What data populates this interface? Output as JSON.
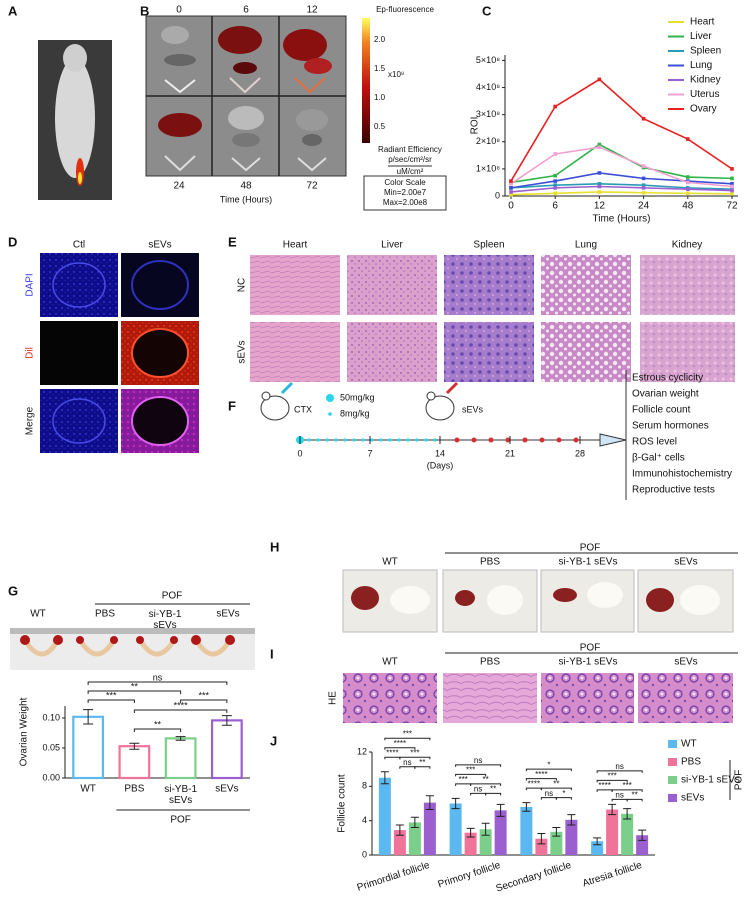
{
  "panel_labels": [
    "A",
    "B",
    "C",
    "D",
    "E",
    "F",
    "G",
    "H",
    "I",
    "J"
  ],
  "panel_b": {
    "times": [
      "0",
      "6",
      "12",
      "24",
      "48",
      "72"
    ],
    "x_label": "Time (Hours)",
    "colorbar_title": "Ep-fluorescence",
    "colorbar_ticks": [
      "2.0",
      "1.5",
      "1.0",
      "0.5"
    ],
    "colorbar_exponent": "x10⁸",
    "units": [
      "Radiant Efficiency",
      "p/sec/cm²/sr",
      "uM/cm²"
    ],
    "color_scale": [
      "Color Scale",
      "Min=2.00e7",
      "Max=2.00e8"
    ]
  },
  "panel_d": {
    "columns": [
      "Ctl",
      "sEVs"
    ],
    "rows": [
      "DAPI",
      "Dil",
      "Merge"
    ]
  },
  "panel_e": {
    "columns": [
      "Heart",
      "Liver",
      "Spleen",
      "Lung",
      "Kidney"
    ],
    "rows": [
      "NC",
      "sEVs"
    ]
  },
  "panel_f": {
    "doses": [
      "50mg/kg",
      "8mg/kg"
    ],
    "treatments": [
      "CTX",
      "sEVs"
    ],
    "days": [
      "0",
      "7",
      "14",
      "21",
      "28"
    ],
    "days_unit": "(Days)",
    "outcomes": [
      "Estrous cyclicity",
      "Ovarian weight",
      "Follicle count",
      "Serum hormones",
      "ROS level",
      "β-Gal⁺ cells",
      "Immunohistochemistry",
      "Reproductive tests"
    ]
  },
  "panel_g": {
    "group_header": "POF",
    "groups": [
      "WT",
      "PBS",
      "si-YB-1\nsEVs",
      "sEVs"
    ]
  },
  "panel_h": {
    "group_header": "POF",
    "groups": [
      "WT",
      "PBS",
      "si-YB-1 sEVs",
      "sEVs"
    ]
  },
  "panel_i": {
    "group_header": "POF",
    "groups": [
      "WT",
      "PBS",
      "si-YB-1 sEVs",
      "sEVs"
    ],
    "stain": "HE"
  },
  "chart_data": [
    {
      "type": "line",
      "x_label": "Time (Hours)",
      "y_label": "ROI",
      "categories": [
        "0",
        "6",
        "12",
        "24",
        "48",
        "72"
      ],
      "ylim": [
        0,
        520000000
      ],
      "yticks": [
        0,
        {
          "value": 100000000,
          "label": "1×10⁸"
        },
        {
          "value": 200000000,
          "label": "2×10⁸"
        },
        {
          "value": 300000000,
          "label": "3×10⁸"
        },
        {
          "value": 400000000,
          "label": "4×10⁸"
        },
        {
          "value": 500000000,
          "label": "5×10⁸"
        }
      ],
      "series": [
        {
          "name": "Heart",
          "color": "#e8e030",
          "values": [
            5000000,
            10000000,
            15000000,
            12000000,
            10000000,
            8000000
          ]
        },
        {
          "name": "Liver",
          "color": "#2fb34a",
          "values": [
            50000000,
            75000000,
            190000000,
            105000000,
            70000000,
            65000000
          ]
        },
        {
          "name": "Spleen",
          "color": "#2a9bb5",
          "values": [
            30000000,
            40000000,
            45000000,
            40000000,
            30000000,
            25000000
          ]
        },
        {
          "name": "Lung",
          "color": "#3b4fd6",
          "values": [
            30000000,
            55000000,
            85000000,
            65000000,
            55000000,
            45000000
          ]
        },
        {
          "name": "Kidney",
          "color": "#9b5fd0",
          "values": [
            15000000,
            30000000,
            35000000,
            30000000,
            25000000,
            20000000
          ]
        },
        {
          "name": "Uterus",
          "color": "#f2a0d0",
          "values": [
            45000000,
            155000000,
            180000000,
            110000000,
            50000000,
            35000000
          ]
        },
        {
          "name": "Ovary",
          "color": "#e82020",
          "values": [
            55000000,
            330000000,
            430000000,
            285000000,
            210000000,
            100000000
          ]
        }
      ]
    },
    {
      "type": "bar",
      "y_label": "Ovarian Weight",
      "categories": [
        "WT",
        "PBS",
        "si-YB-1\nsEVs",
        "sEVs"
      ],
      "x_group_label": "POF",
      "values": [
        0.102,
        0.053,
        0.066,
        0.096
      ],
      "errors": [
        0.012,
        0.005,
        0.003,
        0.008
      ],
      "colors": [
        "#5bb8f0",
        "#f0739a",
        "#7ccf8a",
        "#9c5fd0"
      ],
      "ylim": [
        0,
        0.12
      ],
      "yticks": [
        {
          "value": 0,
          "label": "0.00"
        },
        0.05,
        {
          "value": 0.1,
          "label": "0.10"
        }
      ],
      "significance": [
        "ns",
        "**",
        "***",
        "***",
        "****",
        "**"
      ]
    },
    {
      "type": "grouped_bar",
      "y_label": "Follicle count",
      "categories": [
        "Primordial follicle",
        "Primory follicle",
        "Secondary follicle",
        "Atresia follicle"
      ],
      "legend_group": "POF",
      "ylim": [
        0,
        12
      ],
      "yticks": [
        0,
        4,
        8,
        12
      ],
      "series": [
        {
          "name": "WT",
          "color": "#5bb8f0",
          "values": [
            9.0,
            6.0,
            5.6,
            1.6
          ],
          "errors": [
            0.7,
            0.6,
            0.5,
            0.4
          ]
        },
        {
          "name": "PBS",
          "color": "#f0739a",
          "values": [
            2.9,
            2.6,
            1.9,
            5.3
          ],
          "errors": [
            0.6,
            0.5,
            0.6,
            0.6
          ]
        },
        {
          "name": "si-YB-1 sEVs",
          "color": "#7ccf8a",
          "values": [
            3.8,
            3.0,
            2.7,
            4.8
          ],
          "errors": [
            0.6,
            0.7,
            0.5,
            0.6
          ]
        },
        {
          "name": "sEVs",
          "color": "#9c5fd0",
          "values": [
            6.1,
            5.2,
            4.1,
            2.3
          ],
          "errors": [
            0.8,
            0.7,
            0.6,
            0.6
          ]
        }
      ],
      "significance": [
        [
          "***",
          "****",
          "****",
          "***",
          "ns",
          "**"
        ],
        [
          "ns",
          "***",
          "***",
          "**",
          "ns",
          "**"
        ],
        [
          "*",
          "****",
          "****",
          "**",
          "ns",
          "*"
        ],
        [
          "ns",
          "***",
          "****",
          "***",
          "ns",
          "**"
        ]
      ]
    }
  ]
}
